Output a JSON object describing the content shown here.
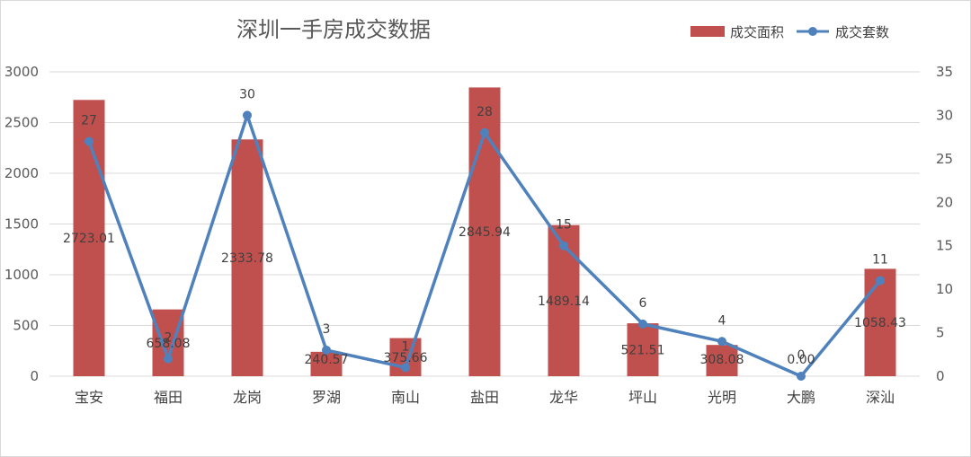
{
  "colors": {
    "bar": "#c0504d",
    "line": "#4f81bd",
    "grid": "#d9d9d9",
    "text": "#595959"
  },
  "chart_data": {
    "type": "bar",
    "title": "深圳一手房成交数据",
    "categories": [
      "宝安",
      "福田",
      "龙岗",
      "罗湖",
      "南山",
      "盐田",
      "龙华",
      "坪山",
      "光明",
      "大鹏",
      "深汕"
    ],
    "series": [
      {
        "name": "成交面积",
        "type": "bar",
        "axis": "left",
        "values": [
          2723.01,
          658.08,
          2333.78,
          240.57,
          375.66,
          2845.94,
          1489.14,
          521.51,
          308.08,
          0.0,
          1058.43
        ],
        "labels": [
          "2723.01",
          "658.08",
          "2333.78",
          "240.57",
          "375.66",
          "2845.94",
          "1489.14",
          "521.51",
          "308.08",
          "0.00",
          "1058.43"
        ]
      },
      {
        "name": "成交套数",
        "type": "line",
        "axis": "right",
        "values": [
          27,
          2,
          30,
          3,
          1,
          28,
          15,
          6,
          4,
          0,
          11
        ],
        "labels": [
          "27",
          "2",
          "30",
          "3",
          "1",
          "28",
          "15",
          "6",
          "4",
          "0",
          "11"
        ]
      }
    ],
    "y_left": {
      "min": 0,
      "max": 3000,
      "ticks": [
        "0",
        "500",
        "1000",
        "1500",
        "2000",
        "2500",
        "3000"
      ]
    },
    "y_right": {
      "min": 0,
      "max": 35,
      "ticks": [
        "0",
        "5",
        "10",
        "15",
        "20",
        "25",
        "30",
        "35"
      ]
    },
    "grid": true,
    "legend": "top-right"
  }
}
